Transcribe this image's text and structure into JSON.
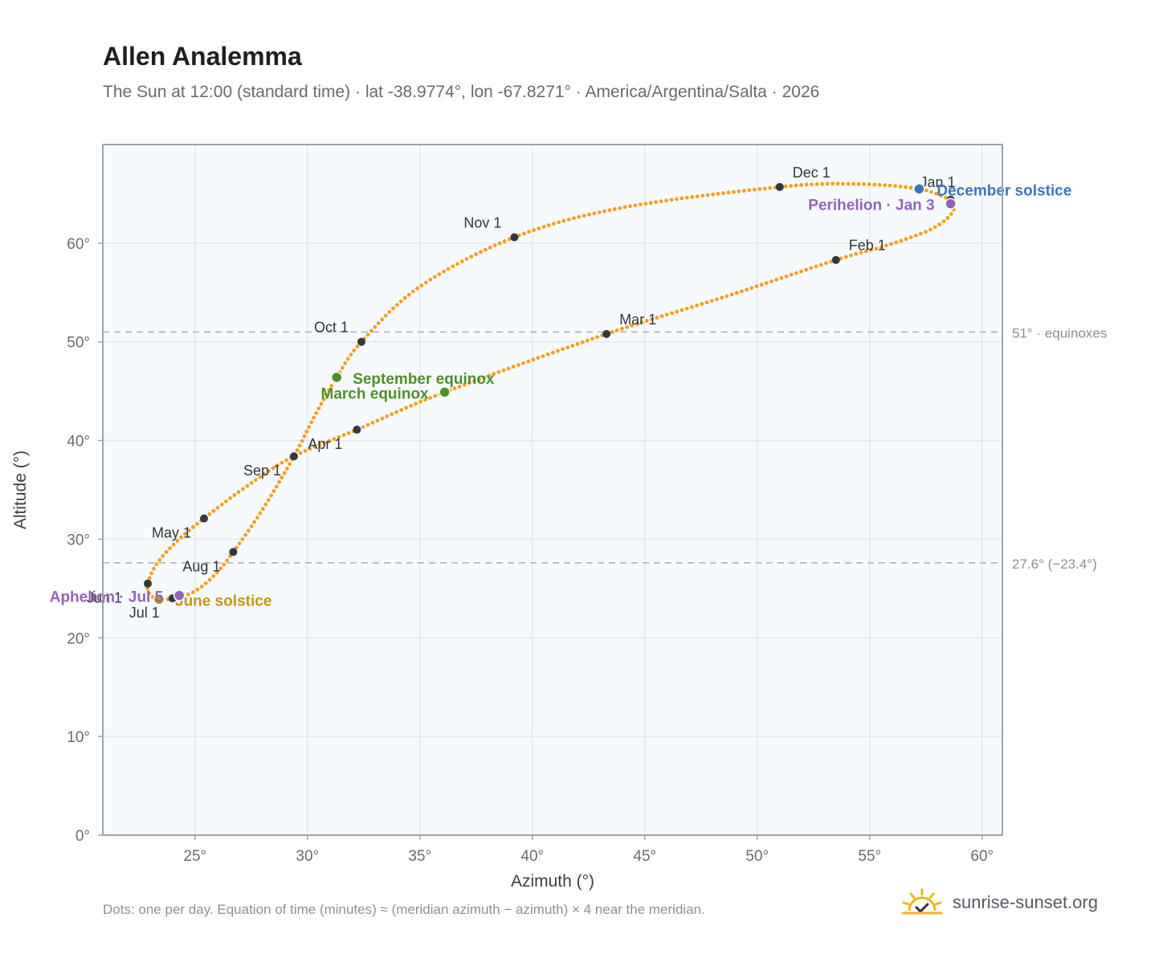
{
  "title": "Allen Analemma",
  "subtitle": "The Sun at 12:00 (standard time) · lat -38.9774°, lon -67.8271° · America/Argentina/Salta · 2026",
  "footnote": "Dots: one per day. Equation of time (minutes) ≈ (meridian azimuth − azimuth) × 4 near the meridian.",
  "brand": {
    "name": "sunrise-sunset.org",
    "icon": "sun-check-icon"
  },
  "colors": {
    "curve": "#f0a020",
    "month_dot": "#333840",
    "equinox": "#4e8f2a",
    "june_solstice": "#c7921a",
    "december_solstice": "#3a78b8",
    "apsis": "#9164b8",
    "grid": "#e4e8ee",
    "plot_bg": "#f7fafd",
    "frame": "#9aa3b0",
    "ref_line": "#a8aeb8"
  },
  "chart_data": {
    "type": "scatter",
    "xlabel": "Azimuth (°)",
    "ylabel": "Altitude (°)",
    "xlim": [
      20.9,
      60.9
    ],
    "ylim": [
      0,
      70
    ],
    "x_ticks": [
      25,
      30,
      35,
      40,
      45,
      50,
      55,
      60
    ],
    "x_tick_labels": [
      "25°",
      "30°",
      "35°",
      "40°",
      "45°",
      "50°",
      "55°",
      "60°"
    ],
    "y_ticks": [
      0,
      10,
      20,
      30,
      40,
      50,
      60
    ],
    "y_tick_labels": [
      "0°",
      "10°",
      "20°",
      "30°",
      "40°",
      "50°",
      "60°"
    ],
    "grid": true,
    "path": [
      {
        "date": "Jan 1",
        "az": 58.6,
        "alt": 64.4
      },
      {
        "date": "Jan 8",
        "az": 58.7,
        "alt": 63.2
      },
      {
        "date": "Jan 16",
        "az": 57.8,
        "alt": 61.5
      },
      {
        "date": "Jan 24",
        "az": 55.8,
        "alt": 59.8
      },
      {
        "date": "Feb 1",
        "az": 53.5,
        "alt": 58.3
      },
      {
        "date": "Feb 15",
        "az": 48.6,
        "alt": 54.6
      },
      {
        "date": "Mar 1",
        "az": 43.3,
        "alt": 50.8
      },
      {
        "date": "Mar 20",
        "az": 36.1,
        "alt": 44.9
      },
      {
        "date": "Apr 1",
        "az": 32.2,
        "alt": 41.1
      },
      {
        "date": "Apr 10",
        "az": 29.3,
        "alt": 38.3
      },
      {
        "date": "Apr 20",
        "az": 27.2,
        "alt": 35.2
      },
      {
        "date": "May 1",
        "az": 25.4,
        "alt": 32.1
      },
      {
        "date": "May 10",
        "az": 24.2,
        "alt": 29.8
      },
      {
        "date": "May 20",
        "az": 23.3,
        "alt": 27.5
      },
      {
        "date": "Jun 1",
        "az": 22.9,
        "alt": 25.5
      },
      {
        "date": "Jun 10",
        "az": 23.0,
        "alt": 24.4
      },
      {
        "date": "Jun 21",
        "az": 23.4,
        "alt": 23.9
      },
      {
        "date": "Jul 1",
        "az": 24.0,
        "alt": 24.0
      },
      {
        "date": "Jul 10",
        "az": 24.9,
        "alt": 24.6
      },
      {
        "date": "Jul 20",
        "az": 25.8,
        "alt": 26.2
      },
      {
        "date": "Aug 1",
        "az": 26.7,
        "alt": 28.7
      },
      {
        "date": "Aug 15",
        "az": 28.0,
        "alt": 33.0
      },
      {
        "date": "Sep 1",
        "az": 29.4,
        "alt": 38.4
      },
      {
        "date": "Sep 12",
        "az": 30.3,
        "alt": 42.4
      },
      {
        "date": "Sep 22",
        "az": 31.3,
        "alt": 46.4
      },
      {
        "date": "Oct 1",
        "az": 32.4,
        "alt": 50.0
      },
      {
        "date": "Oct 15",
        "az": 35.0,
        "alt": 55.6
      },
      {
        "date": "Nov 1",
        "az": 39.2,
        "alt": 60.6
      },
      {
        "date": "Nov 15",
        "az": 44.0,
        "alt": 63.6
      },
      {
        "date": "Dec 1",
        "az": 51.0,
        "alt": 65.7
      },
      {
        "date": "Dec 10",
        "az": 54.4,
        "alt": 66.0
      },
      {
        "date": "Dec 21",
        "az": 57.2,
        "alt": 65.5
      },
      {
        "date": "Jan 1",
        "az": 58.6,
        "alt": 64.4
      }
    ],
    "month_markers": [
      {
        "label": "Jan 1",
        "az": 58.6,
        "alt": 64.4,
        "anchor": "end",
        "dx": 6,
        "dy": -16
      },
      {
        "label": "Feb 1",
        "az": 53.5,
        "alt": 58.3,
        "anchor": "start",
        "dx": 16,
        "dy": -12
      },
      {
        "label": "Mar 1",
        "az": 43.3,
        "alt": 50.8,
        "anchor": "start",
        "dx": 16,
        "dy": -12
      },
      {
        "label": "Apr 1",
        "az": 32.2,
        "alt": 41.1,
        "anchor": "end",
        "dx": -18,
        "dy": 24
      },
      {
        "label": "May 1",
        "az": 25.4,
        "alt": 32.1,
        "anchor": "end",
        "dx": -16,
        "dy": 24
      },
      {
        "label": "Jun 1",
        "az": 22.9,
        "alt": 25.5,
        "anchor": "end",
        "dx": -32,
        "dy": 24
      },
      {
        "label": "Jul 1",
        "az": 24.0,
        "alt": 24.0,
        "anchor": "end",
        "dx": -16,
        "dy": 24
      },
      {
        "label": "Aug 1",
        "az": 26.7,
        "alt": 28.7,
        "anchor": "end",
        "dx": -16,
        "dy": 24
      },
      {
        "label": "Sep 1",
        "az": 29.4,
        "alt": 38.4,
        "anchor": "end",
        "dx": -16,
        "dy": 24
      },
      {
        "label": "Oct 1",
        "az": 32.4,
        "alt": 50.0,
        "anchor": "end",
        "dx": -16,
        "dy": -12
      },
      {
        "label": "Nov 1",
        "az": 39.2,
        "alt": 60.6,
        "anchor": "end",
        "dx": -16,
        "dy": -12
      },
      {
        "label": "Dec 1",
        "az": 51.0,
        "alt": 65.7,
        "anchor": "start",
        "dx": 16,
        "dy": -12
      }
    ],
    "events": [
      {
        "label": "December solstice",
        "az": 57.2,
        "alt": 65.5,
        "color": "#3a78b8",
        "anchor": "start",
        "dx": 22,
        "dy": 8
      },
      {
        "label": "Perihelion · Jan 3",
        "az": 58.6,
        "alt": 64.0,
        "color": "#9164b8",
        "anchor": "end",
        "dx": -20,
        "dy": 8
      },
      {
        "label": "September equinox",
        "az": 31.3,
        "alt": 46.4,
        "color": "#4e8f2a",
        "anchor": "start",
        "dx": 20,
        "dy": 8
      },
      {
        "label": "March equinox",
        "az": 36.1,
        "alt": 44.9,
        "color": "#4e8f2a",
        "anchor": "end",
        "dx": -20,
        "dy": 8
      },
      {
        "label": "June solstice",
        "az": 23.4,
        "alt": 23.9,
        "color": "#c7921a",
        "anchor": "start",
        "dx": 20,
        "dy": 8
      },
      {
        "label": "Aphelion · Jul 5",
        "az": 24.3,
        "alt": 24.3,
        "color": "#9164b8",
        "anchor": "end",
        "dx": -20,
        "dy": 8
      }
    ],
    "reference_lines": [
      {
        "alt": 51.0,
        "label": "51° · equinoxes"
      },
      {
        "alt": 27.6,
        "label": "27.6° (−23.4°)"
      }
    ]
  }
}
